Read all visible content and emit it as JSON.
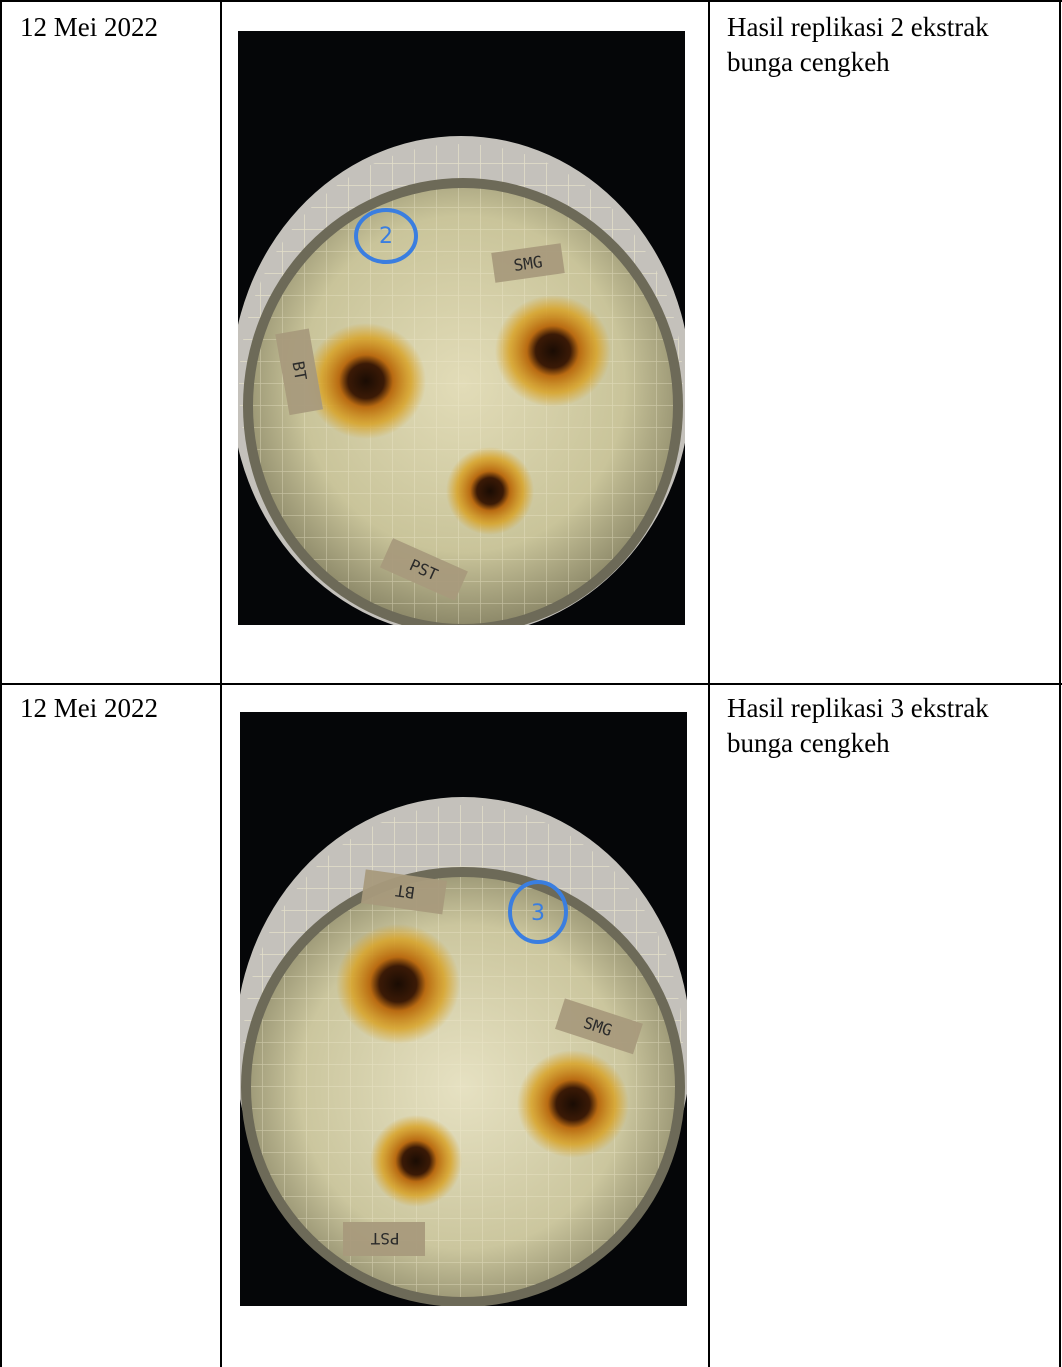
{
  "rows": [
    {
      "date": "12 Mei 2022",
      "description": "Hasil replikasi 2 ekstrak bunga cengkeh",
      "photo": {
        "circle_mark": "2",
        "labels": [
          "SMG",
          "BT",
          "PST"
        ]
      }
    },
    {
      "date": "12 Mei 2022",
      "description": "Hasil replikasi 3 ekstrak bunga cengkeh",
      "photo": {
        "circle_mark": "3",
        "labels": [
          "BT",
          "SMG",
          "PST"
        ]
      }
    }
  ],
  "colors": {
    "table_border": "#000000",
    "photo_background": "#050608",
    "agar": "#c9c49a",
    "inhibition_zone": "#d8a020",
    "well": "#1a0c04",
    "marker_ink": "#3a7ee0",
    "label_tape": "#a89a7c"
  }
}
